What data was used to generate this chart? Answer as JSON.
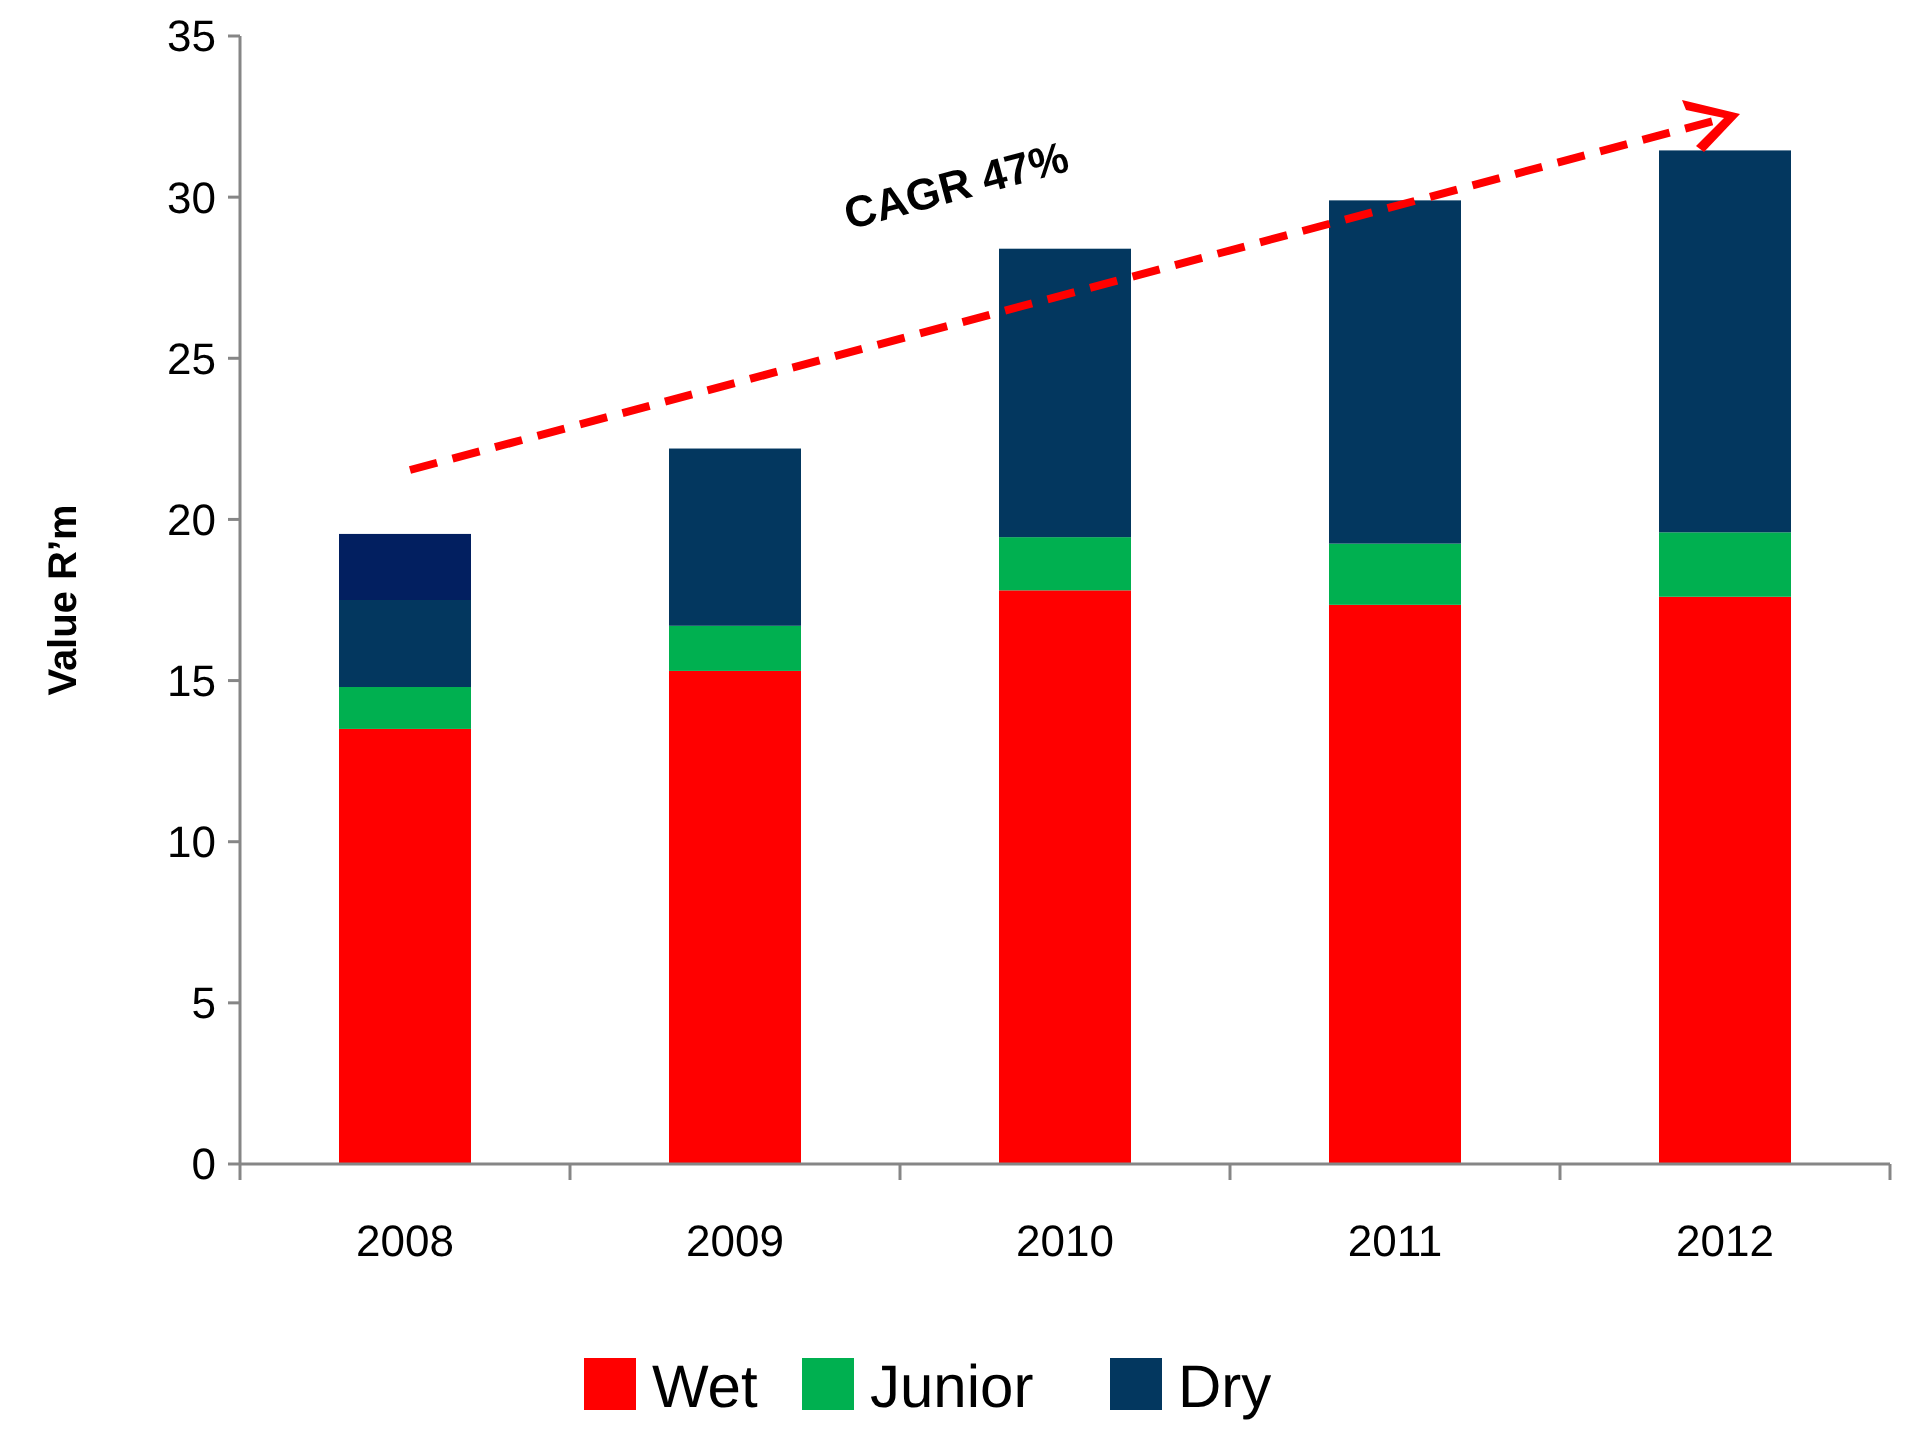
{
  "chart_data": {
    "type": "bar",
    "stacked": true,
    "ylabel": "Value R’m",
    "categories": [
      "2008",
      "2009",
      "2010",
      "2011",
      "2012"
    ],
    "series": [
      {
        "name": "Wet",
        "color": "#ff0000",
        "values": [
          13.5,
          15.3,
          17.8,
          17.35,
          17.6
        ]
      },
      {
        "name": "Junior",
        "color": "#00b050",
        "values": [
          1.3,
          1.4,
          1.65,
          1.9,
          2.0
        ]
      },
      {
        "name": "Dry",
        "color": "#03375f",
        "values": [
          2.7,
          5.5,
          8.95,
          10.65,
          11.85
        ]
      },
      {
        "color": "#021f60",
        "values": [
          2.05,
          null,
          null,
          null,
          null
        ]
      }
    ],
    "ylim": [
      0,
      35
    ],
    "yticks": [
      0,
      5,
      10,
      15,
      20,
      25,
      30,
      35
    ],
    "grid": false,
    "legend": "bottom",
    "annotations": [
      "CAGR 47%"
    ]
  }
}
